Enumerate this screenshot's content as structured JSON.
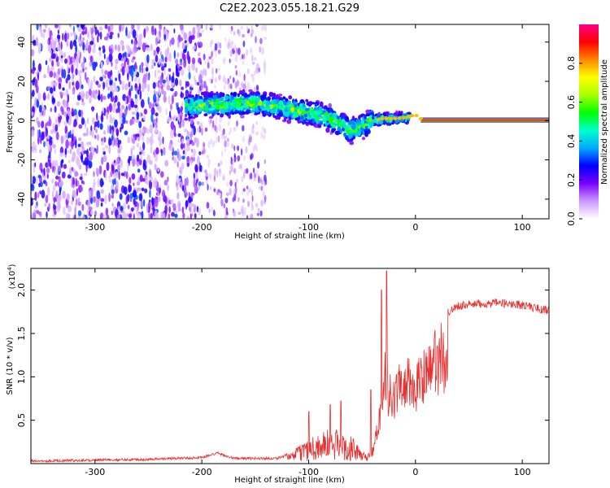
{
  "chart_data": [
    {
      "type": "heatmap",
      "title": "C2E2.2023.055.18.21.G29",
      "xlabel": "Height of straight line (km)",
      "ylabel": "Frequency (Hz)",
      "xlim": [
        -360,
        125
      ],
      "ylim": [
        -50,
        49
      ],
      "xticks": [
        -300,
        -200,
        -100,
        0,
        100
      ],
      "yticks": [
        -40,
        -20,
        0,
        20,
        40
      ],
      "colorbar": {
        "label": "Normalized spectral amplitude",
        "range": [
          0,
          1
        ],
        "ticks": [
          "0.0",
          "0.2",
          "0.4",
          "0.6",
          "0.8"
        ],
        "colormap": [
          "#ffffff",
          "#cc99ff",
          "#7b00ff",
          "#0000ff",
          "#00aaff",
          "#00ffcc",
          "#00ff00",
          "#aaff00",
          "#ffff00",
          "#ff8800",
          "#ff0000",
          "#ff0088"
        ]
      },
      "centerline": [
        [
          -210,
          7
        ],
        [
          -200,
          8
        ],
        [
          -180,
          8
        ],
        [
          -160,
          9
        ],
        [
          -140,
          8
        ],
        [
          -120,
          6
        ],
        [
          -110,
          5
        ],
        [
          -100,
          4
        ],
        [
          -90,
          3
        ],
        [
          -80,
          1
        ],
        [
          -70,
          -2
        ],
        [
          -60,
          -5
        ],
        [
          -50,
          -3
        ],
        [
          -40,
          0
        ],
        [
          -30,
          1
        ],
        [
          -20,
          1
        ],
        [
          -10,
          1.5
        ],
        [
          0,
          3
        ],
        [
          5,
          1
        ],
        [
          10,
          0.3
        ],
        [
          125,
          0.3
        ]
      ],
      "noise_region": [
        -360,
        -200
      ],
      "sparse_region": [
        -200,
        -140
      ]
    },
    {
      "type": "line",
      "xlabel": "Height of straight line (km)",
      "ylabel": "SNR (10 * v/v)",
      "multiplier": "(x10",
      "multiplier_exp": "4",
      "xlim": [
        -360,
        125
      ],
      "ylim": [
        0,
        2.25
      ],
      "xticks": [
        -300,
        -200,
        -100,
        0,
        100
      ],
      "yticks": [
        0.5,
        1.0,
        1.5,
        2.0
      ],
      "ytick_labels": [
        "0.5",
        "1.0",
        "1.5",
        "2.0"
      ],
      "color": "#e83030",
      "envelope": [
        [
          -360,
          0.03
        ],
        [
          -300,
          0.04
        ],
        [
          -250,
          0.05
        ],
        [
          -200,
          0.07
        ],
        [
          -185,
          0.12
        ],
        [
          -170,
          0.06
        ],
        [
          -130,
          0.06
        ],
        [
          -115,
          0.12
        ],
        [
          -105,
          0.25
        ],
        [
          -95,
          0.35
        ],
        [
          -85,
          0.4
        ],
        [
          -75,
          0.42
        ],
        [
          -65,
          0.35
        ],
        [
          -58,
          0.3
        ],
        [
          -52,
          0.15
        ],
        [
          -45,
          0.1
        ],
        [
          -40,
          0.2
        ],
        [
          -35,
          0.6
        ],
        [
          -31,
          1.0
        ],
        [
          -28,
          1.5
        ],
        [
          -25,
          1.05
        ],
        [
          -20,
          1.1
        ],
        [
          -15,
          1.15
        ],
        [
          -10,
          1.25
        ],
        [
          -5,
          1.3
        ],
        [
          0,
          1.2
        ],
        [
          10,
          1.4
        ],
        [
          20,
          1.6
        ],
        [
          30,
          1.75
        ],
        [
          40,
          1.82
        ],
        [
          60,
          1.84
        ],
        [
          80,
          1.85
        ],
        [
          100,
          1.83
        ],
        [
          110,
          1.8
        ],
        [
          125,
          1.76
        ]
      ],
      "spikes": [
        [
          -27,
          2.22
        ],
        [
          -32,
          2.0
        ],
        [
          -42,
          0.85
        ],
        [
          -100,
          0.6
        ],
        [
          -80,
          0.68
        ],
        [
          -70,
          0.72
        ]
      ]
    }
  ]
}
